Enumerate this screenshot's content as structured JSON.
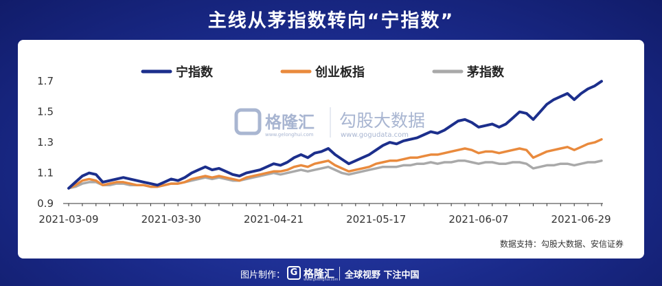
{
  "title": "主线从茅指数转向“宁指数”",
  "source": "数据支持：勾股大数据、安信证券",
  "watermark": {
    "gelonghui_name": "格隆汇",
    "gelonghui_url": "www.gelonghui.com",
    "gogudata_name": "勾股大数据",
    "gogudata_url": "www.gogudata.com"
  },
  "footer": {
    "label": "图片制作：",
    "logo_letter": "G",
    "logo_name": "格隆汇",
    "logo_url": "www.gelonghui.com",
    "slogan": "全球视野 下注中国"
  },
  "colors": {
    "ning": "#1c2f8c",
    "chuangye": "#e98a3d",
    "mao": "#a9a9a9",
    "watermark": "#9aa9c9"
  },
  "chart_data": {
    "type": "line",
    "ylim": [
      0.9,
      1.8
    ],
    "yticks": [
      "0.9",
      "1.1",
      "1.3",
      "1.5",
      "1.7"
    ],
    "xtick_labels": [
      "2021-03-09",
      "2021-03-30",
      "2021-04-21",
      "2021-05-17",
      "2021-06-07",
      "2021-06-29"
    ],
    "xtick_positions": [
      0,
      15,
      30,
      45,
      60,
      75
    ],
    "legend": "top",
    "grid": false,
    "series": [
      {
        "name": "宁指数",
        "values": [
          1.0,
          1.04,
          1.08,
          1.1,
          1.09,
          1.04,
          1.05,
          1.06,
          1.07,
          1.06,
          1.05,
          1.04,
          1.03,
          1.02,
          1.04,
          1.06,
          1.05,
          1.07,
          1.1,
          1.12,
          1.14,
          1.12,
          1.13,
          1.11,
          1.09,
          1.08,
          1.1,
          1.11,
          1.12,
          1.14,
          1.16,
          1.15,
          1.17,
          1.2,
          1.22,
          1.2,
          1.23,
          1.24,
          1.26,
          1.22,
          1.19,
          1.16,
          1.18,
          1.2,
          1.22,
          1.25,
          1.28,
          1.3,
          1.29,
          1.31,
          1.32,
          1.33,
          1.35,
          1.37,
          1.36,
          1.38,
          1.41,
          1.44,
          1.45,
          1.43,
          1.4,
          1.41,
          1.42,
          1.4,
          1.42,
          1.46,
          1.5,
          1.49,
          1.45,
          1.5,
          1.55,
          1.58,
          1.6,
          1.62,
          1.58,
          1.62,
          1.65,
          1.67,
          1.7
        ]
      },
      {
        "name": "创业板指",
        "values": [
          1.0,
          1.02,
          1.05,
          1.06,
          1.05,
          1.02,
          1.03,
          1.04,
          1.04,
          1.03,
          1.02,
          1.02,
          1.01,
          1.01,
          1.02,
          1.03,
          1.03,
          1.04,
          1.06,
          1.07,
          1.08,
          1.07,
          1.08,
          1.07,
          1.06,
          1.05,
          1.07,
          1.08,
          1.09,
          1.1,
          1.11,
          1.11,
          1.12,
          1.14,
          1.15,
          1.14,
          1.16,
          1.17,
          1.18,
          1.15,
          1.13,
          1.11,
          1.12,
          1.13,
          1.14,
          1.16,
          1.17,
          1.18,
          1.18,
          1.19,
          1.2,
          1.2,
          1.21,
          1.22,
          1.22,
          1.23,
          1.24,
          1.25,
          1.26,
          1.25,
          1.23,
          1.24,
          1.24,
          1.23,
          1.24,
          1.25,
          1.26,
          1.25,
          1.2,
          1.22,
          1.24,
          1.25,
          1.26,
          1.27,
          1.25,
          1.27,
          1.29,
          1.3,
          1.32
        ]
      },
      {
        "name": "茅指数",
        "values": [
          1.0,
          1.01,
          1.03,
          1.04,
          1.04,
          1.02,
          1.02,
          1.03,
          1.03,
          1.02,
          1.02,
          1.02,
          1.01,
          1.01,
          1.02,
          1.03,
          1.03,
          1.04,
          1.05,
          1.06,
          1.07,
          1.06,
          1.07,
          1.06,
          1.05,
          1.05,
          1.06,
          1.07,
          1.08,
          1.09,
          1.1,
          1.09,
          1.1,
          1.11,
          1.12,
          1.11,
          1.12,
          1.13,
          1.14,
          1.12,
          1.1,
          1.09,
          1.1,
          1.11,
          1.12,
          1.13,
          1.14,
          1.14,
          1.14,
          1.15,
          1.15,
          1.16,
          1.16,
          1.17,
          1.16,
          1.17,
          1.17,
          1.18,
          1.18,
          1.17,
          1.16,
          1.17,
          1.17,
          1.16,
          1.16,
          1.17,
          1.17,
          1.16,
          1.13,
          1.14,
          1.15,
          1.15,
          1.16,
          1.16,
          1.15,
          1.16,
          1.17,
          1.17,
          1.18
        ]
      }
    ]
  }
}
